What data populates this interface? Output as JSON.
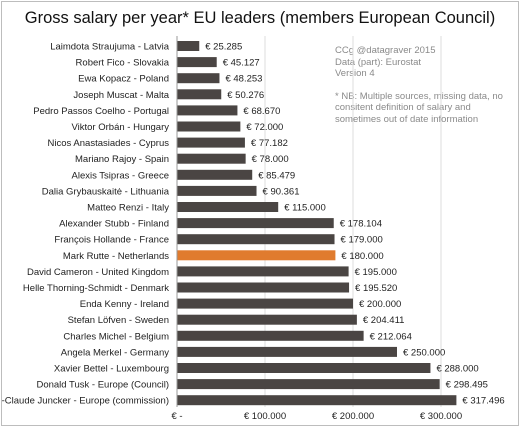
{
  "chart_data": {
    "type": "bar",
    "orientation": "horizontal",
    "title": "Gross salary per year* EU leaders (members European Council)",
    "categories": [
      "Laimdota Straujuma - Latvia",
      "Robert Fico - Slovakia",
      "Ewa Kopacz - Poland",
      "Joseph Muscat - Malta",
      "Pedro Passos Coelho - Portugal",
      "Viktor Orbán - Hungary",
      "Nicos Anastasiades - Cyprus",
      "Mariano Rajoy - Spain",
      "Alexis Tsipras - Greece",
      "Dalia Grybauskaitė - Lithuania",
      "Matteo Renzi - Italy",
      "Alexander Stubb - Finland",
      "François Hollande - France",
      "Mark Rutte - Netherlands",
      "David Cameron - United Kingdom",
      "Helle Thorning-Schmidt - Denmark",
      "Enda Kenny - Ireland",
      "Stefan Löfven - Sweden",
      "Charles Michel - Belgium",
      "Angela Merkel - Germany",
      "Xavier Bettel - Luxembourg",
      "Donald Tusk - Europe (Council)",
      "Jean-Claude Juncker - Europe (commission)"
    ],
    "values": [
      25285,
      45127,
      48253,
      50276,
      68670,
      72000,
      77182,
      78000,
      85479,
      90361,
      115000,
      178104,
      179000,
      180000,
      195000,
      195520,
      200000,
      204411,
      212064,
      250000,
      288000,
      298495,
      317496
    ],
    "value_labels": [
      "€ 25.285",
      "€ 45.127",
      "€ 48.253",
      "€ 50.276",
      "€ 68.670",
      "€ 72.000",
      "€ 77.182",
      "€ 78.000",
      "€ 85.479",
      "€ 90.361",
      "€ 115.000",
      "€ 178.104",
      "€ 179.000",
      "€ 180.000",
      "€ 195.000",
      "€ 195.520",
      "€ 200.000",
      "€ 204.411",
      "€ 212.064",
      "€ 250.000",
      "€ 288.000",
      "€ 298.495",
      "€ 317.496"
    ],
    "highlight_index": 13,
    "bar_color": "#4a4543",
    "highlight_color": "#e07b2e",
    "xlim": [
      0,
      340000
    ],
    "x_ticks": [
      0,
      100000,
      200000,
      300000
    ],
    "x_tick_labels": [
      "€ -",
      "€ 100.000",
      "€ 200.000",
      "€ 300.000"
    ],
    "grid": "vertical",
    "grid_color": "#dcdcdc"
  },
  "notes": {
    "credit": "CCg @datagraver 2015",
    "source": "Data (part): Eurostat",
    "version": "Version 4",
    "footnote": "* NB: Multiple sources, missing data, no consitent definition of salary and sometimes out of date information"
  }
}
